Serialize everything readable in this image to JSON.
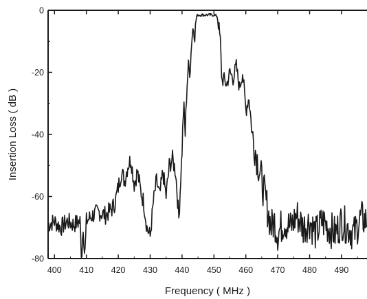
{
  "chart_data": {
    "type": "line",
    "title": "",
    "xlabel": "Frequency ( MHz )",
    "ylabel": "Insertion Loss ( dB )",
    "xlim": [
      398,
      498
    ],
    "ylim": [
      -80,
      0
    ],
    "x_ticks": [
      400,
      410,
      420,
      430,
      440,
      450,
      460,
      470,
      480,
      490
    ],
    "y_ticks": [
      0,
      -20,
      -40,
      -60,
      -80
    ],
    "grid": false,
    "legend": "none",
    "line_color": "#1a1a1a",
    "series": [
      {
        "x": [
          398,
          400,
          402,
          404,
          406,
          408,
          408.5,
          409,
          409.5,
          410,
          412,
          414,
          416,
          418,
          419,
          420,
          421,
          422,
          423,
          424,
          425,
          426,
          427,
          428,
          429,
          430,
          431,
          432,
          433,
          434,
          435,
          436,
          437,
          438,
          439,
          440,
          440.5,
          441,
          441.5,
          442,
          442.5,
          443,
          443.5,
          444,
          444.5,
          445,
          446,
          447,
          448,
          449,
          450,
          451,
          451.5,
          452,
          452.5,
          453,
          454,
          455,
          456,
          457,
          458,
          459,
          460,
          461,
          462,
          463,
          464,
          465,
          466,
          467,
          468,
          469,
          470,
          472,
          474,
          476,
          478,
          480,
          482,
          484,
          486,
          488,
          490,
          492,
          494,
          496,
          498
        ],
        "y": [
          -69,
          -68,
          -70,
          -68,
          -69,
          -68,
          -80,
          -69,
          -80,
          -68,
          -66,
          -65,
          -66,
          -64,
          -62,
          -57,
          -52,
          -55,
          -50,
          -48,
          -56,
          -52,
          -58,
          -62,
          -70,
          -73,
          -62,
          -55,
          -60,
          -52,
          -60,
          -50,
          -48,
          -52,
          -67,
          -45,
          -30,
          -40,
          -25,
          -18,
          -20,
          -10,
          -5,
          -8,
          -2,
          -1.5,
          -1.5,
          -1.5,
          -1.5,
          -1.5,
          -1.5,
          -2,
          -5,
          -10,
          -23,
          -22,
          -24,
          -20,
          -22,
          -18,
          -25,
          -20,
          -32,
          -28,
          -40,
          -45,
          -50,
          -55,
          -60,
          -65,
          -70,
          -68,
          -72,
          -68,
          -70,
          -66,
          -70,
          -68,
          -72,
          -68,
          -70,
          -72,
          -68,
          -70,
          -72,
          -67,
          -68
        ]
      }
    ]
  }
}
